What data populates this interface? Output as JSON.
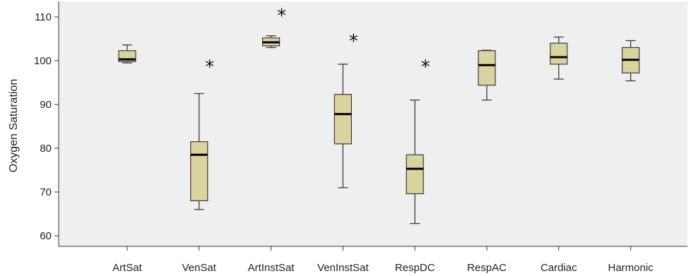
{
  "chart_data": {
    "type": "boxplot",
    "ylabel": "Oxygen Saturation",
    "ylim": [
      57,
      113
    ],
    "yticks": [
      60,
      70,
      80,
      90,
      100,
      110
    ],
    "grid": false,
    "colors": {
      "plot_bg": "#efefef",
      "box_fill": "#d9d49f",
      "box_stroke": "#3a3a3a",
      "median": "#000000"
    },
    "categories": [
      "ArtSat",
      "VenSat",
      "ArtInstSat",
      "VenInstSat",
      "RespDC",
      "RespAC",
      "Cardiac",
      "Harmonic"
    ],
    "boxes": [
      {
        "min": 99.5,
        "q1": 99.8,
        "median": 100.3,
        "q3": 102.3,
        "max": 103.6,
        "outliers": []
      },
      {
        "min": 66.0,
        "q1": 68.0,
        "median": 78.5,
        "q3": 81.5,
        "max": 92.5,
        "outliers": [
          99.3
        ]
      },
      {
        "min": 103.0,
        "q1": 103.4,
        "median": 104.2,
        "q3": 105.2,
        "max": 105.7,
        "outliers": [
          111.0
        ]
      },
      {
        "min": 71.0,
        "q1": 81.0,
        "median": 87.8,
        "q3": 92.3,
        "max": 99.2,
        "outliers": [
          105.2
        ]
      },
      {
        "min": 62.8,
        "q1": 69.6,
        "median": 75.3,
        "q3": 78.5,
        "max": 91.0,
        "outliers": [
          99.3
        ]
      },
      {
        "min": 91.0,
        "q1": 94.4,
        "median": 99.0,
        "q3": 102.3,
        "max": 102.4,
        "outliers": []
      },
      {
        "min": 95.8,
        "q1": 99.2,
        "median": 100.8,
        "q3": 104.0,
        "max": 105.4,
        "outliers": []
      },
      {
        "min": 95.4,
        "q1": 97.2,
        "median": 100.2,
        "q3": 103.0,
        "max": 104.6,
        "outliers": []
      }
    ],
    "outlier_marker": "*"
  }
}
